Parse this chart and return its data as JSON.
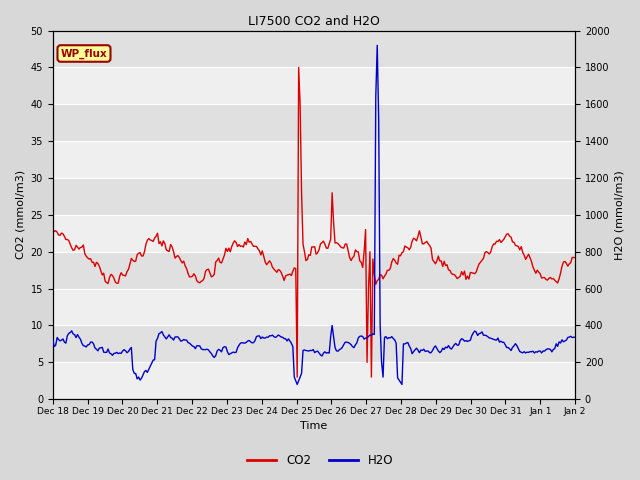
{
  "title": "LI7500 CO2 and H2O",
  "xlabel": "Time",
  "ylabel_left": "CO2 (mmol/m3)",
  "ylabel_right": "H2O (mmol/m3)",
  "ylim_left": [
    0,
    50
  ],
  "ylim_right": [
    0,
    2000
  ],
  "yticks_left": [
    0,
    5,
    10,
    15,
    20,
    25,
    30,
    35,
    40,
    45,
    50
  ],
  "yticks_right": [
    0,
    200,
    400,
    600,
    800,
    1000,
    1200,
    1400,
    1600,
    1800,
    2000
  ],
  "xtick_labels": [
    "Dec 18",
    "Dec 19",
    "Dec 20",
    "Dec 21",
    "Dec 22",
    "Dec 23",
    "Dec 24",
    "Dec 25",
    "Dec 26",
    "Dec 27",
    "Dec 28",
    "Dec 29",
    "Dec 30",
    "Dec 31",
    "Jan 1",
    "Jan 2"
  ],
  "annotation_text": "WP_flux",
  "annotation_color": "#990000",
  "annotation_bg": "#ffff99",
  "co2_color": "#dd0000",
  "h2o_color": "#0000cc",
  "grid_color": "#ffffff",
  "bg_color": "#d8d8d8",
  "plot_bg": "#e0e0e0",
  "legend_co2": "CO2",
  "legend_h2o": "H2O",
  "figsize": [
    6.4,
    4.8
  ],
  "dpi": 100
}
